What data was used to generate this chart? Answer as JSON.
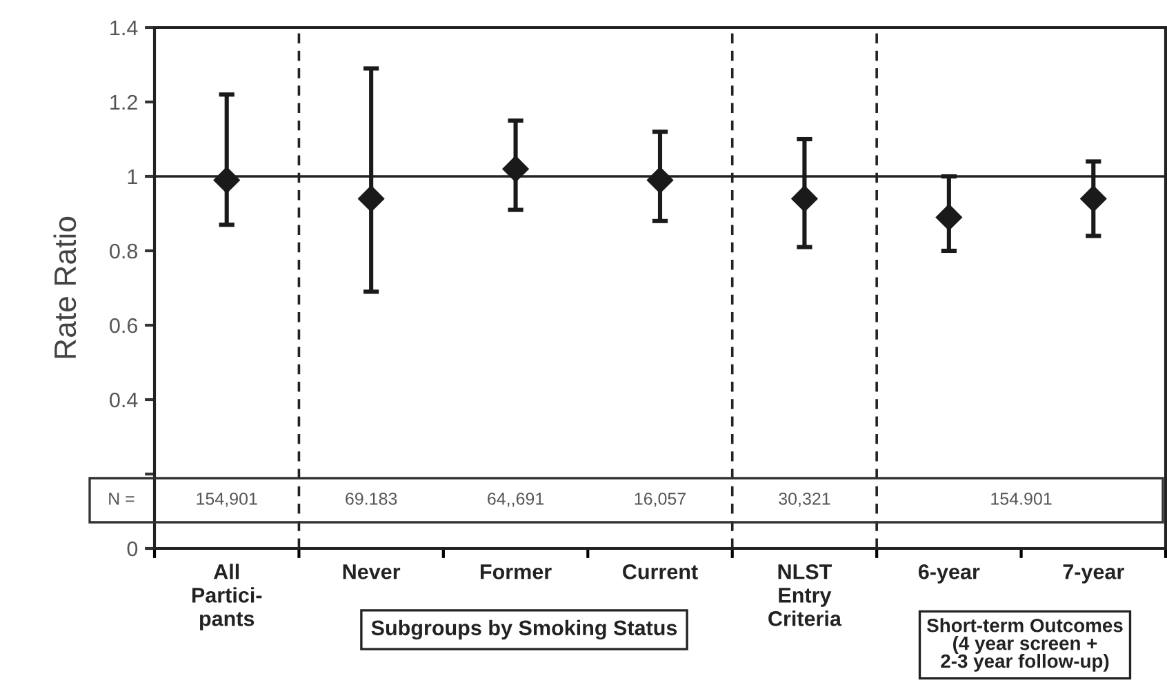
{
  "chart_data": {
    "type": "scatter",
    "ylabel": "Rate Ratio",
    "categories": [
      "All\nPartici-\npants",
      "Never",
      "Former",
      "Current",
      "NLST\nEntry\nCriteria",
      "6-year",
      "7-year"
    ],
    "series": [
      {
        "color": "#1a1a1a",
        "values": [
          0.99,
          0.94,
          1.02,
          0.99,
          0.94,
          0.89,
          0.94
        ],
        "errors": [
          [
            0.87,
            1.22
          ],
          [
            0.69,
            1.29
          ],
          [
            0.91,
            1.15
          ],
          [
            0.88,
            1.12
          ],
          [
            0.81,
            1.1
          ],
          [
            0.8,
            1.0
          ],
          [
            0.84,
            1.04
          ]
        ]
      }
    ],
    "marker": "diamond",
    "ylim": [
      0,
      1.4
    ],
    "yticks": [
      0,
      {
        "value": 0.2,
        "label": null
      },
      0.4,
      0.6,
      0.8,
      1,
      1.2,
      1.4
    ],
    "ref_lines": [
      {
        "axis": "y",
        "value": 1,
        "line_style": "solid"
      }
    ],
    "annotations": [
      "N =",
      "154,901",
      "69.183",
      "64,,691",
      "16,057",
      "30,321",
      "154.901",
      "Subgroups by Smoking Status",
      "Short-term Outcomes\n(4 year screen +\n2-3 year follow-up)"
    ],
    "grid": false,
    "legend": false
  }
}
